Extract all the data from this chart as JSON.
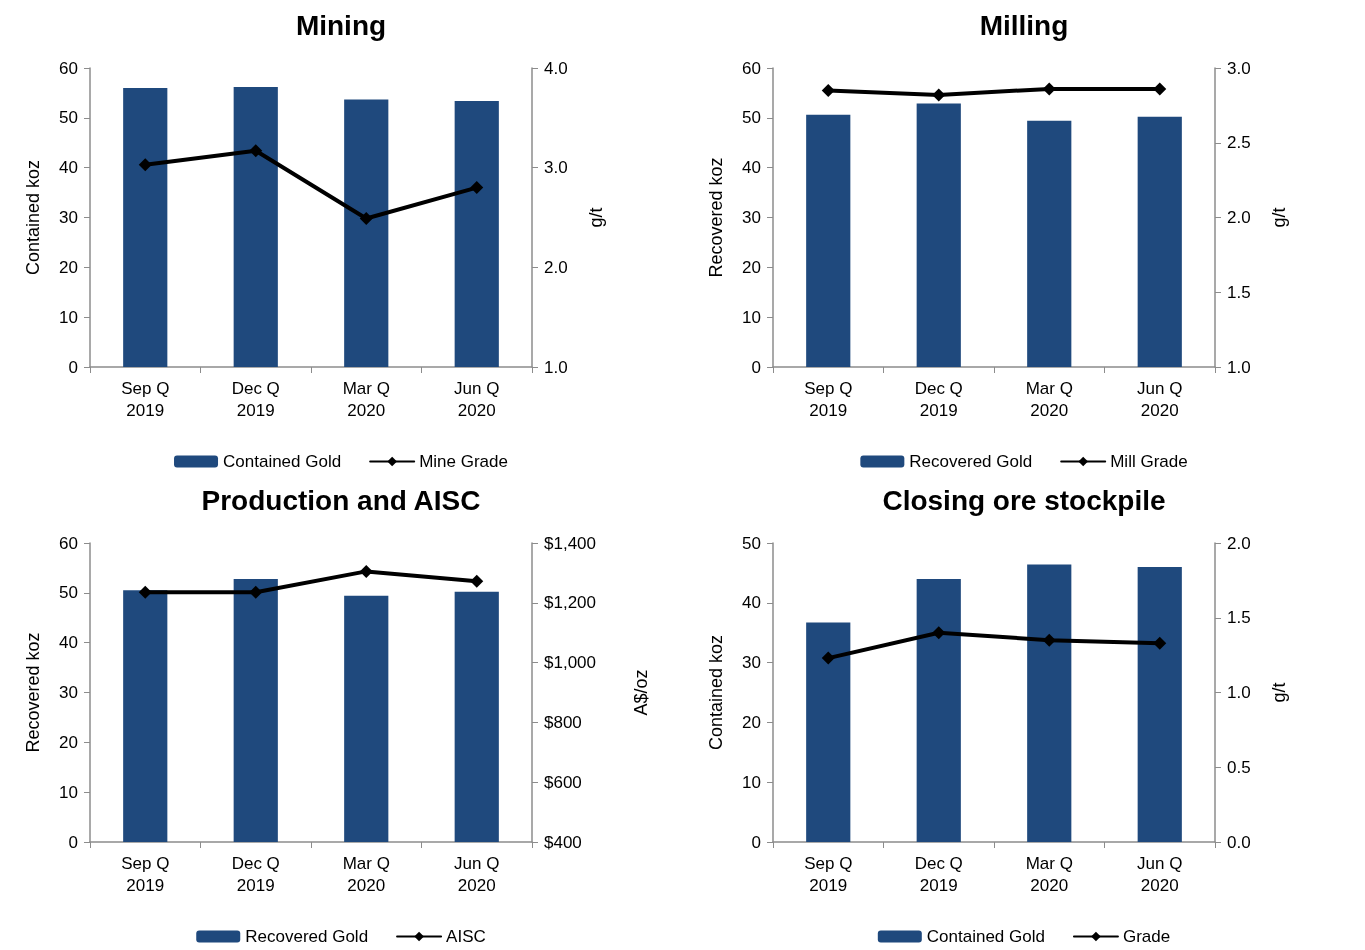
{
  "chart_data": [
    {
      "type": "bar",
      "title": "Mining",
      "ylabel": "Contained koz",
      "y2label": "g/t",
      "categories": [
        "Sep Q\n2019",
        "Dec Q\n2019",
        "Mar Q\n2020",
        "Jun Q\n2020"
      ],
      "ylim": [
        0,
        60
      ],
      "yticks": [
        0,
        10,
        20,
        30,
        40,
        50,
        60
      ],
      "y2lim": [
        1,
        4
      ],
      "y2ticks": [
        {
          "value": 1,
          "label": "1.0"
        },
        {
          "value": 2,
          "label": "2.0"
        },
        {
          "value": 3,
          "label": "3.0"
        },
        {
          "value": 4,
          "label": "4.0"
        }
      ],
      "grid": false,
      "legend": "bottom",
      "marker": "diamond",
      "line_style": "solid",
      "series": [
        {
          "name": "Contained Gold",
          "color": "#1f497d",
          "values": [
            56,
            56.2,
            53.7,
            53.4
          ]
        },
        {
          "name": "Mine Grade",
          "type": "line",
          "axis": "y2",
          "color": "#000000",
          "values": [
            3.03,
            3.17,
            2.49,
            2.8
          ]
        }
      ]
    },
    {
      "type": "bar",
      "title": "Milling",
      "ylabel": "Recovered koz",
      "y2label": "g/t",
      "categories": [
        "Sep Q\n2019",
        "Dec Q\n2019",
        "Mar Q\n2020",
        "Jun Q\n2020"
      ],
      "ylim": [
        0,
        60
      ],
      "yticks": [
        0,
        10,
        20,
        30,
        40,
        50,
        60
      ],
      "y2lim": [
        1,
        3
      ],
      "y2ticks": [
        {
          "value": 1,
          "label": "1.0"
        },
        {
          "value": 1.5,
          "label": "1.5"
        },
        {
          "value": 2,
          "label": "2.0"
        },
        {
          "value": 2.5,
          "label": "2.5"
        },
        {
          "value": 3,
          "label": "3.0"
        }
      ],
      "grid": false,
      "legend": "bottom",
      "marker": "diamond",
      "line_style": "solid",
      "series": [
        {
          "name": "Recovered Gold",
          "color": "#1f497d",
          "values": [
            50.6,
            52.9,
            49.4,
            50.2
          ]
        },
        {
          "name": "Mill Grade",
          "type": "line",
          "axis": "y2",
          "color": "#000000",
          "values": [
            2.85,
            2.82,
            2.86,
            2.86
          ]
        }
      ]
    },
    {
      "type": "bar",
      "title": "Production and AISC",
      "ylabel": "Recovered koz",
      "y2label": "A$/oz",
      "categories": [
        "Sep Q\n2019",
        "Dec Q\n2019",
        "Mar Q\n2020",
        "Jun Q\n2020"
      ],
      "ylim": [
        0,
        60
      ],
      "yticks": [
        0,
        10,
        20,
        30,
        40,
        50,
        60
      ],
      "y2lim": [
        400,
        1400
      ],
      "y2ticks": [
        {
          "value": 400,
          "label": "$400"
        },
        {
          "value": 600,
          "label": "$600"
        },
        {
          "value": 800,
          "label": "$800"
        },
        {
          "value": 1000,
          "label": "$1,000"
        },
        {
          "value": 1200,
          "label": "$1,200"
        },
        {
          "value": 1400,
          "label": "$1,400"
        }
      ],
      "grid": false,
      "legend": "bottom",
      "marker": "diamond",
      "line_style": "solid",
      "series": [
        {
          "name": "Recovered Gold",
          "color": "#1f497d",
          "values": [
            50.5,
            52.8,
            49.4,
            50.2
          ]
        },
        {
          "name": "AISC",
          "type": "line",
          "axis": "y2",
          "color": "#000000",
          "values": [
            1235,
            1235,
            1305,
            1272
          ]
        }
      ]
    },
    {
      "type": "bar",
      "title": "Closing ore stockpile",
      "ylabel": "Contained koz",
      "y2label": "g/t",
      "categories": [
        "Sep Q\n2019",
        "Dec Q\n2019",
        "Mar Q\n2020",
        "Jun Q\n2020"
      ],
      "ylim": [
        0,
        50
      ],
      "yticks": [
        0,
        10,
        20,
        30,
        40,
        50
      ],
      "y2lim": [
        0,
        2
      ],
      "y2ticks": [
        {
          "value": 0,
          "label": "0.0"
        },
        {
          "value": 0.5,
          "label": "0.5"
        },
        {
          "value": 1,
          "label": "1.0"
        },
        {
          "value": 1.5,
          "label": "1.5"
        },
        {
          "value": 2,
          "label": "2.0"
        }
      ],
      "grid": false,
      "legend": "bottom",
      "marker": "diamond",
      "line_style": "solid",
      "series": [
        {
          "name": "Contained Gold",
          "color": "#1f497d",
          "values": [
            36.7,
            44,
            46.4,
            46
          ]
        },
        {
          "name": "Grade",
          "type": "line",
          "axis": "y2",
          "color": "#000000",
          "values": [
            1.23,
            1.4,
            1.35,
            1.33
          ]
        }
      ]
    }
  ]
}
